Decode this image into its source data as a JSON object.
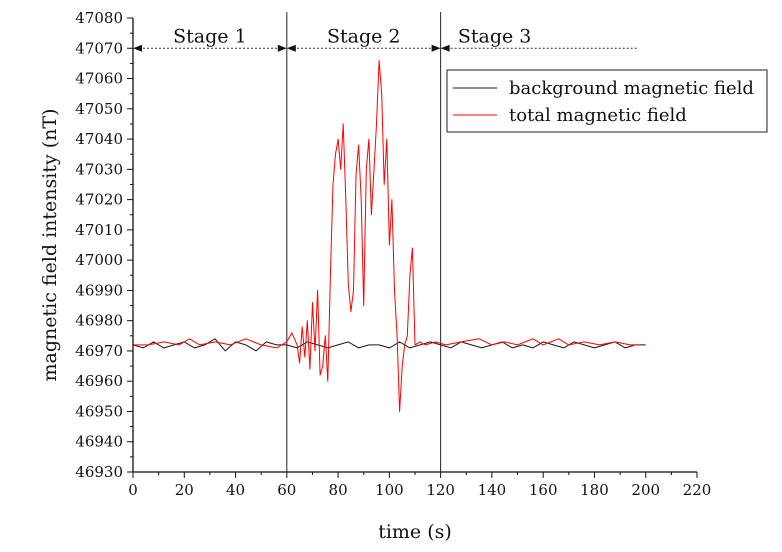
{
  "chart_data": {
    "type": "line",
    "title": "",
    "xlabel": "time (s)",
    "ylabel": "magnetic field intensity (nT)",
    "xlim": [
      0,
      220
    ],
    "ylim": [
      46930,
      47080
    ],
    "x_ticks": [
      0,
      20,
      40,
      60,
      80,
      100,
      120,
      140,
      160,
      180,
      200,
      220
    ],
    "y_ticks": [
      46930,
      46940,
      46950,
      46960,
      46970,
      46980,
      46990,
      47000,
      47010,
      47020,
      47030,
      47040,
      47050,
      47060,
      47070,
      47080
    ],
    "grid": false,
    "legend_position": "top-right",
    "stage_boundaries": [
      60,
      120
    ],
    "stages": [
      {
        "label": "Stage 1",
        "from": 0,
        "to": 60
      },
      {
        "label": "Stage 2",
        "from": 60,
        "to": 120
      },
      {
        "label": "Stage 3",
        "from": 120,
        "to": 198
      }
    ],
    "stage_arrow_level": 47070,
    "series": [
      {
        "name": "background magnetic field",
        "color": "#1a1a1a",
        "x": [
          0,
          4,
          8,
          12,
          16,
          20,
          24,
          28,
          32,
          36,
          40,
          44,
          48,
          52,
          56,
          60,
          64,
          68,
          72,
          76,
          80,
          84,
          88,
          92,
          96,
          100,
          104,
          108,
          112,
          116,
          120,
          124,
          128,
          132,
          136,
          140,
          144,
          148,
          152,
          156,
          160,
          164,
          168,
          172,
          176,
          180,
          184,
          188,
          192,
          196,
          200
        ],
        "y": [
          46972,
          46971,
          46973,
          46971,
          46972,
          46973,
          46971,
          46972,
          46974,
          46970,
          46973,
          46972,
          46970,
          46973,
          46972,
          46972,
          46971,
          46973,
          46972,
          46971,
          46972,
          46973,
          46971,
          46972,
          46972,
          46971,
          46973,
          46971,
          46972,
          46973,
          46972,
          46971,
          46973,
          46972,
          46971,
          46972,
          46973,
          46971,
          46972,
          46971,
          46973,
          46972,
          46971,
          46973,
          46972,
          46971,
          46972,
          46973,
          46971,
          46972,
          46972
        ]
      },
      {
        "name": "total magnetic field",
        "color": "#ff0000",
        "x": [
          0,
          6,
          12,
          18,
          22,
          26,
          32,
          38,
          44,
          50,
          56,
          60,
          62,
          64,
          65,
          66,
          67,
          68,
          69,
          70,
          71,
          72,
          73,
          74,
          75,
          76,
          77,
          78,
          79,
          80,
          81,
          82,
          83,
          84,
          85,
          86,
          87,
          88,
          89,
          90,
          91,
          92,
          93,
          94,
          95,
          96,
          97,
          98,
          99,
          100,
          101,
          102,
          103,
          104,
          105,
          106,
          107,
          108,
          109,
          110,
          112,
          114,
          118,
          122,
          128,
          135,
          140,
          145,
          150,
          156,
          160,
          166,
          170,
          176,
          182,
          188,
          194,
          198
        ],
        "y": [
          46972,
          46972,
          46973,
          46972,
          46974,
          46972,
          46973,
          46972,
          46974,
          46972,
          46971,
          46973,
          46976,
          46972,
          46966,
          46978,
          46968,
          46980,
          46964,
          46986,
          46970,
          46990,
          46962,
          46965,
          46975,
          46960,
          46995,
          47025,
          47035,
          47040,
          47030,
          47045,
          47020,
          46992,
          46983,
          46990,
          47028,
          47038,
          47020,
          46985,
          47030,
          47040,
          47015,
          47030,
          47045,
          47066,
          47055,
          47025,
          47040,
          47005,
          47020,
          46990,
          46975,
          46950,
          46965,
          46972,
          46975,
          46995,
          47004,
          46972,
          46973,
          46972,
          46973,
          46972,
          46973,
          46974,
          46972,
          46973,
          46972,
          46974,
          46972,
          46974,
          46972,
          46973,
          46972,
          46973,
          46972,
          46972
        ]
      }
    ]
  }
}
